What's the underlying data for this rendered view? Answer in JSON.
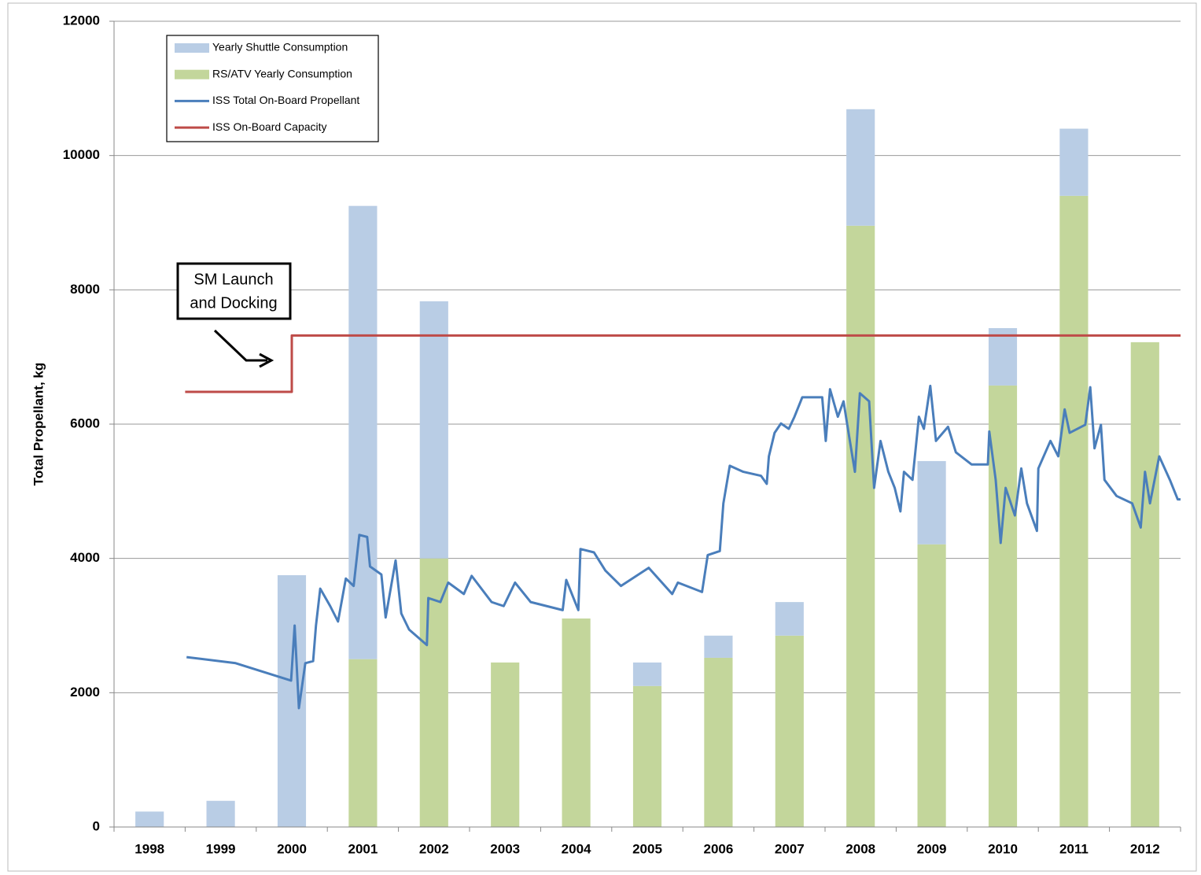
{
  "chart_data": {
    "type": "combo",
    "categories": [
      "1998",
      "1999",
      "2000",
      "2001",
      "2002",
      "2003",
      "2004",
      "2005",
      "2006",
      "2007",
      "2008",
      "2009",
      "2010",
      "2011",
      "2012"
    ],
    "xlim": [
      1998,
      2013
    ],
    "ylim": [
      0,
      12000
    ],
    "yticks": [
      0,
      2000,
      4000,
      6000,
      8000,
      10000,
      12000
    ],
    "ylabel": "Total Propellant, kg",
    "grid": true,
    "legend": "upper left",
    "annotation": {
      "lines": [
        "SM Launch",
        "and Docking"
      ]
    },
    "series": [
      {
        "name": "Yearly Shuttle Consumption",
        "type": "bar",
        "color": "#b9cde5",
        "values": [
          230,
          390,
          3750,
          6750,
          3830,
          0,
          0,
          350,
          330,
          500,
          1735,
          1240,
          855,
          1000,
          0
        ]
      },
      {
        "name": "RS/ATV Yearly Consumption",
        "type": "bar",
        "color": "#c3d69b",
        "values": [
          0,
          0,
          0,
          2500,
          4000,
          2450,
          3105,
          2100,
          2520,
          2850,
          8955,
          4210,
          6575,
          9400,
          7220
        ]
      },
      {
        "name": "ISS Total On-Board Propellant",
        "type": "line",
        "color": "#4a7ebb",
        "x": [
          1999.02,
          1999.71,
          2000.49,
          2000.54,
          2000.6,
          2000.69,
          2000.8,
          2000.84,
          2000.9,
          2001.04,
          2001.15,
          2001.26,
          2001.37,
          2001.45,
          2001.56,
          2001.6,
          2001.76,
          2001.82,
          2001.96,
          2002.04,
          2002.15,
          2002.4,
          2002.42,
          2002.59,
          2002.7,
          2002.92,
          2003.03,
          2003.31,
          2003.48,
          2003.64,
          2003.86,
          2004.31,
          2004.36,
          2004.53,
          2004.56,
          2004.75,
          2004.91,
          2005.13,
          2005.52,
          2005.85,
          2005.93,
          2006.27,
          2006.35,
          2006.52,
          2006.57,
          2006.66,
          2006.85,
          2007.1,
          2007.18,
          2007.21,
          2007.29,
          2007.38,
          2007.49,
          2007.57,
          2007.68,
          2007.96,
          2008.01,
          2008.07,
          2008.18,
          2008.26,
          2008.34,
          2008.42,
          2008.49,
          2008.62,
          2008.69,
          2008.78,
          2008.89,
          2008.98,
          2009.06,
          2009.11,
          2009.23,
          2009.32,
          2009.39,
          2009.48,
          2009.56,
          2009.73,
          2009.84,
          2010.06,
          2010.29,
          2010.31,
          2010.4,
          2010.47,
          2010.54,
          2010.67,
          2010.76,
          2010.84,
          2010.98,
          2011.0,
          2011.17,
          2011.28,
          2011.37,
          2011.44,
          2011.66,
          2011.73,
          2011.79,
          2011.88,
          2011.93,
          2012.1,
          2012.32,
          2012.44,
          2012.5,
          2012.57,
          2012.7,
          2012.85,
          2012.96,
          2013.0
        ],
        "values": [
          2530,
          2440,
          2180,
          3000,
          1770,
          2440,
          2470,
          3000,
          3550,
          3290,
          3060,
          3700,
          3590,
          4350,
          4320,
          3880,
          3760,
          3120,
          3970,
          3180,
          2940,
          2710,
          3410,
          3350,
          3640,
          3470,
          3740,
          3350,
          3290,
          3640,
          3350,
          3230,
          3680,
          3230,
          4140,
          4090,
          3820,
          3590,
          3860,
          3470,
          3640,
          3500,
          4050,
          4110,
          4820,
          5380,
          5290,
          5230,
          5110,
          5520,
          5870,
          6010,
          5930,
          6110,
          6400,
          6400,
          5750,
          6520,
          6110,
          6340,
          5810,
          5290,
          6460,
          6340,
          5050,
          5750,
          5290,
          5050,
          4700,
          5290,
          5170,
          6110,
          5930,
          6570,
          5750,
          5960,
          5580,
          5400,
          5400,
          5890,
          5170,
          4230,
          5050,
          4640,
          5340,
          4820,
          4410,
          5340,
          5750,
          5520,
          6220,
          5870,
          5990,
          6550,
          5640,
          5990,
          5170,
          4930,
          4820,
          4460,
          5290,
          4820,
          5520,
          5170,
          4880,
          4880
        ]
      },
      {
        "name": "ISS On-Board Capacity",
        "type": "line",
        "color": "#be4b48",
        "x": [
          1999.0,
          2000.5,
          2000.5,
          2013.0
        ],
        "values": [
          6480,
          6480,
          7320,
          7320
        ]
      }
    ]
  }
}
